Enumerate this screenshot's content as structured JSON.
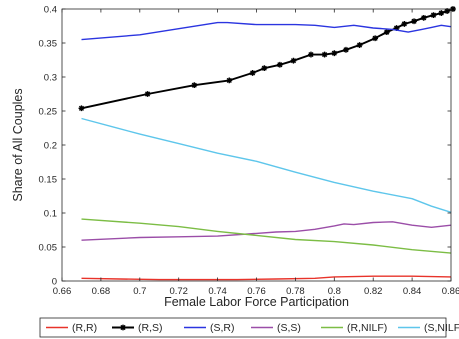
{
  "chart_data": {
    "type": "line",
    "xlabel": "Female Labor Force Participation",
    "ylabel": "Share of All Couples",
    "xlim": [
      0.66,
      0.86
    ],
    "ylim": [
      0,
      0.4
    ],
    "xticks": [
      "0.66",
      "0.68",
      "0.7",
      "0.72",
      "0.74",
      "0.76",
      "0.78",
      "0.8",
      "0.82",
      "0.84",
      "0.86"
    ],
    "yticks": [
      "0",
      "0.05",
      "0.1",
      "0.15",
      "0.2",
      "0.25",
      "0.3",
      "0.35",
      "0.4"
    ],
    "grid": false,
    "legend_position": "bottom",
    "series": [
      {
        "name": "(R,R)",
        "color": "#e8332a",
        "marker": "none",
        "x": [
          0.67,
          0.69,
          0.71,
          0.73,
          0.75,
          0.77,
          0.79,
          0.8,
          0.82,
          0.84,
          0.86
        ],
        "y": [
          0.004,
          0.003,
          0.002,
          0.002,
          0.002,
          0.003,
          0.004,
          0.006,
          0.007,
          0.007,
          0.006
        ]
      },
      {
        "name": "(R,S)",
        "color": "#000000",
        "marker": "star",
        "x": [
          0.67,
          0.704,
          0.728,
          0.746,
          0.758,
          0.764,
          0.772,
          0.779,
          0.788,
          0.795,
          0.8,
          0.806,
          0.813,
          0.821,
          0.827,
          0.832,
          0.836,
          0.841,
          0.846,
          0.851,
          0.855,
          0.858,
          0.861
        ],
        "y": [
          0.254,
          0.275,
          0.288,
          0.295,
          0.306,
          0.313,
          0.318,
          0.324,
          0.333,
          0.333,
          0.335,
          0.34,
          0.347,
          0.357,
          0.366,
          0.372,
          0.378,
          0.382,
          0.387,
          0.391,
          0.394,
          0.397,
          0.4
        ]
      },
      {
        "name": "(S,R)",
        "color": "#2b35e0",
        "marker": "none",
        "x": [
          0.67,
          0.7,
          0.72,
          0.74,
          0.745,
          0.76,
          0.78,
          0.79,
          0.8,
          0.81,
          0.82,
          0.83,
          0.838,
          0.845,
          0.85,
          0.855,
          0.86
        ],
        "y": [
          0.355,
          0.362,
          0.371,
          0.38,
          0.38,
          0.377,
          0.377,
          0.376,
          0.373,
          0.376,
          0.372,
          0.37,
          0.366,
          0.37,
          0.373,
          0.376,
          0.374
        ]
      },
      {
        "name": "(S,S)",
        "color": "#9b4ea8",
        "marker": "none",
        "x": [
          0.67,
          0.7,
          0.72,
          0.74,
          0.76,
          0.77,
          0.78,
          0.79,
          0.8,
          0.805,
          0.81,
          0.82,
          0.83,
          0.84,
          0.85,
          0.86
        ],
        "y": [
          0.06,
          0.064,
          0.065,
          0.066,
          0.07,
          0.072,
          0.073,
          0.076,
          0.081,
          0.084,
          0.083,
          0.086,
          0.087,
          0.082,
          0.079,
          0.082
        ]
      },
      {
        "name": "(R,NILF)",
        "color": "#7cbd45",
        "marker": "none",
        "x": [
          0.67,
          0.7,
          0.72,
          0.74,
          0.76,
          0.78,
          0.8,
          0.82,
          0.84,
          0.86
        ],
        "y": [
          0.091,
          0.085,
          0.08,
          0.073,
          0.067,
          0.061,
          0.058,
          0.053,
          0.046,
          0.041
        ]
      },
      {
        "name": "(S,NILF)",
        "color": "#5ec6eb",
        "marker": "none",
        "x": [
          0.67,
          0.7,
          0.72,
          0.74,
          0.76,
          0.78,
          0.8,
          0.82,
          0.84,
          0.85,
          0.86
        ],
        "y": [
          0.239,
          0.216,
          0.202,
          0.188,
          0.176,
          0.16,
          0.145,
          0.132,
          0.121,
          0.11,
          0.101
        ]
      }
    ]
  }
}
